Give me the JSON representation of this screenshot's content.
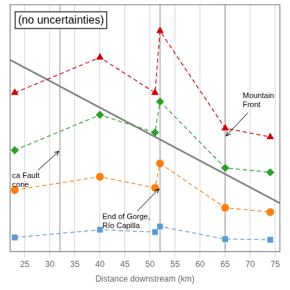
{
  "chart_data": {
    "type": "line",
    "title": "(no uncertainties)",
    "xlabel": "Distance downstream (km)",
    "xlim": [
      22,
      76
    ],
    "xticks": [
      25,
      30,
      35,
      40,
      45,
      50,
      55,
      60,
      65,
      70,
      75
    ],
    "ylim": [
      0.0,
      1.12
    ],
    "yticks": [],
    "tick_labels": "x",
    "grid": true,
    "vlines": [
      32,
      52,
      65
    ],
    "series": [
      {
        "x": [
          22,
          76
        ],
        "values": [
          0.87,
          0.22
        ],
        "color": "#808080",
        "line_style": "solid"
      },
      {
        "x": [
          23,
          40,
          51,
          52,
          65,
          74
        ],
        "values": [
          0.72,
          0.88,
          0.72,
          1.0,
          0.56,
          0.52
        ],
        "color": "#cc0000",
        "marker": "triangle",
        "line_style": "dashed"
      },
      {
        "x": [
          23,
          40,
          51,
          52,
          65,
          74
        ],
        "values": [
          0.46,
          0.62,
          0.54,
          0.68,
          0.38,
          0.36
        ],
        "color": "#2ca02c",
        "marker": "diamond",
        "line_style": "dashed"
      },
      {
        "x": [
          23,
          40,
          51,
          52,
          65,
          74
        ],
        "values": [
          0.28,
          0.34,
          0.29,
          0.4,
          0.2,
          0.18
        ],
        "color": "#ff7f0e",
        "marker": "circle",
        "line_style": "dashed"
      },
      {
        "x": [
          23,
          40,
          51,
          52,
          65,
          74
        ],
        "values": [
          0.065,
          0.1,
          0.09,
          0.115,
          0.058,
          0.055
        ],
        "color": "#5b9bd5",
        "marker": "square",
        "line_style": "dashed"
      }
    ],
    "annotations": [
      {
        "text": "Mountain\nFront",
        "x": 65,
        "y": 0.52,
        "text_x": 68.5,
        "text_y": 0.64
      },
      {
        "text": "End of Gorge,\nRío Capilla",
        "x": 52,
        "y": 0.29,
        "text_x": 40.5,
        "text_y": 0.175
      },
      {
        "text": "ca Fault\ncone",
        "x": 32,
        "y": 0.46,
        "text_x": 22.5,
        "text_y": 0.36
      }
    ]
  }
}
